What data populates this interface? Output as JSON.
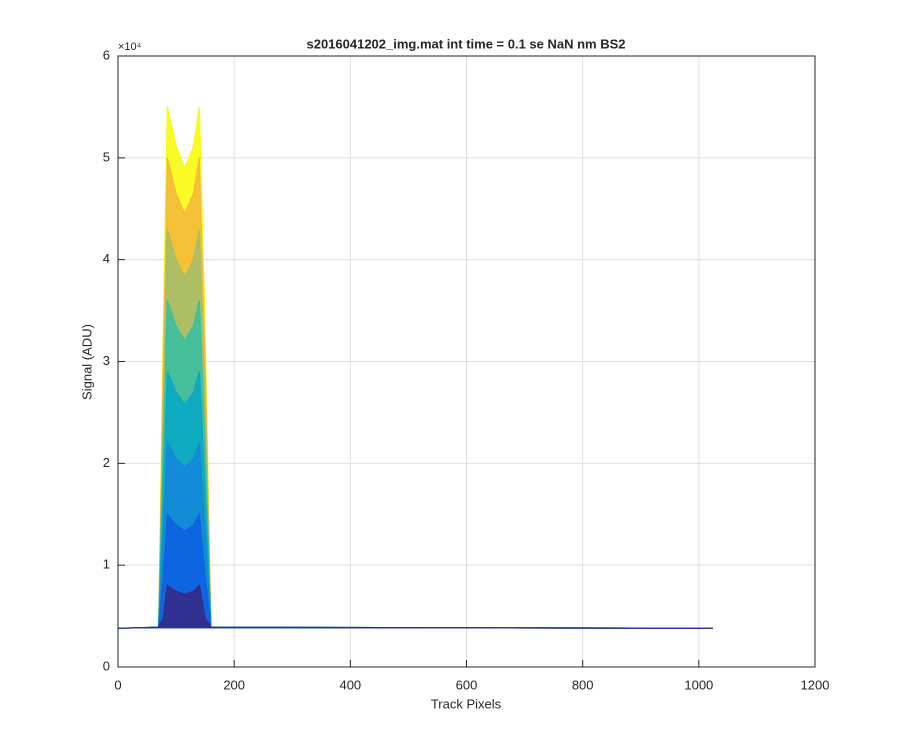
{
  "chart_data": {
    "type": "line",
    "title": "s2016041202_img.mat int time = 0.1 se  NaN nm BS2",
    "x_label": "Track Pixels",
    "y_label": "Signal (ADU)",
    "y_exponent": "×10⁴",
    "x": [
      0,
      70,
      78,
      85,
      100,
      115,
      130,
      140,
      150,
      160,
      1024
    ],
    "series": [
      {
        "color": "#f9fb0e",
        "values": [
          3800,
          3900,
          33000,
          55000,
          51150,
          48950,
          51150,
          55000,
          33000,
          3900,
          3800
        ]
      },
      {
        "color": "#f5b93a",
        "values": [
          3800,
          3900,
          30000,
          50000,
          46500,
          44500,
          46500,
          50000,
          30000,
          3900,
          3800
        ]
      },
      {
        "color": "#a5be6a",
        "values": [
          3800,
          3900,
          25800,
          43000,
          39990,
          38270,
          39990,
          43000,
          25800,
          3900,
          3800
        ]
      },
      {
        "color": "#3bbfa0",
        "values": [
          3800,
          3900,
          21600,
          36000,
          33480,
          32040,
          33480,
          36000,
          21600,
          3900,
          3800
        ]
      },
      {
        "color": "#09a9c4",
        "values": [
          3800,
          3900,
          17400,
          29000,
          26970,
          25810,
          26970,
          29000,
          17400,
          3900,
          3800
        ]
      },
      {
        "color": "#1487d9",
        "values": [
          3800,
          3900,
          13200,
          22000,
          20460,
          19580,
          20460,
          22000,
          13200,
          3900,
          3800
        ]
      },
      {
        "color": "#0d62e0",
        "values": [
          3800,
          3900,
          9000,
          15000,
          13950,
          13350,
          13950,
          15000,
          9000,
          3900,
          3800
        ]
      },
      {
        "color": "#352a87",
        "values": [
          3800,
          3900,
          4800,
          8000,
          7440,
          7120,
          7440,
          8000,
          4800,
          3900,
          3800
        ]
      }
    ],
    "xlim": [
      0,
      1200
    ],
    "xticks": [
      0,
      200,
      400,
      600,
      800,
      1000,
      1200
    ],
    "ylim": [
      0,
      60000
    ],
    "yticks": [
      {
        "value": 0,
        "label": "0"
      },
      {
        "value": 10000,
        "label": "1"
      },
      {
        "value": 20000,
        "label": "2"
      },
      {
        "value": 30000,
        "label": "3"
      },
      {
        "value": 40000,
        "label": "4"
      },
      {
        "value": 50000,
        "label": "5"
      },
      {
        "value": 60000,
        "label": "6"
      }
    ],
    "grid": true
  }
}
